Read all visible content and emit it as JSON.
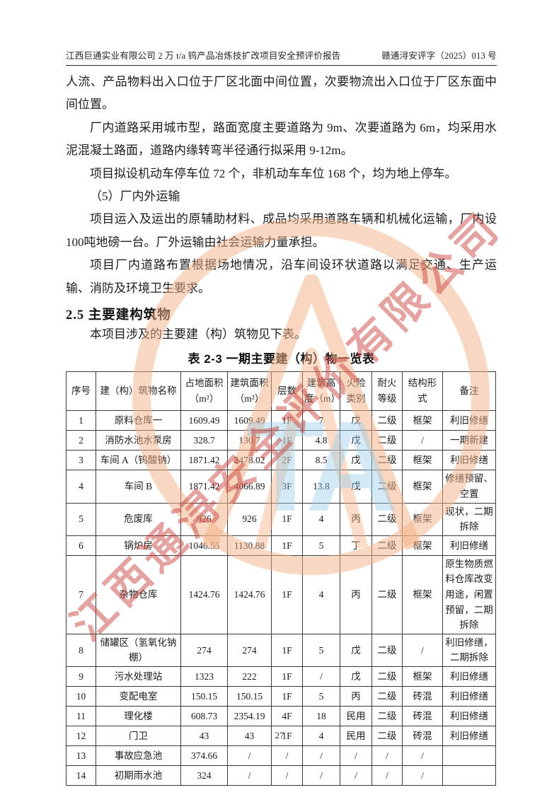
{
  "header": {
    "left": "江西巨通实业有限公司 2 万 t/a 钨产品冶炼技扩改项目安全预评价报告",
    "right": "赣通浔安评字（2025）013 号"
  },
  "paragraphs": [
    {
      "text": "人流、产品物料出入口位于厂区北面中间位置，次要物流出入口位于厂区东面中间位置。",
      "indent": false
    },
    {
      "text": "厂内道路采用城市型，路面宽度主要道路为 9m、次要道路为 6m，均采用水泥混凝土路面，道路内缘转弯半径通行拟采用 9-12m。",
      "indent": true
    },
    {
      "text": "项目拟设机动车停车位 72 个，非机动车车位 168 个，均为地上停车。",
      "indent": true
    },
    {
      "text": "（5）厂内外运输",
      "indent": true
    },
    {
      "text": "项目运入及运出的原辅助材料、成品均采用道路车辆和机械化运输，厂内设100吨地磅一台。厂外运输由社会运输力量承担。",
      "indent": true
    },
    {
      "text": "项目厂内道路布置根据场地情况，沿车间设环状道路以满足交通、生产运输、消防及环境卫生要求。",
      "indent": true
    }
  ],
  "section": {
    "heading": "2.5 主要建构筑物",
    "intro": "本项目涉及的主要建（构）筑物见下表。"
  },
  "table": {
    "caption": "表 2-3 一期主要建（构）物一览表",
    "headers": [
      "序号",
      "建（构）筑物名称",
      "占地面积（m²）",
      "建筑面积（m²）",
      "层数",
      "建筑高度（m）",
      "火险类别",
      "耐火等级",
      "结构形式",
      "备注"
    ],
    "rows": [
      [
        "1",
        "原料仓库一",
        "1609.49",
        "1609.49",
        "1F",
        "7",
        "戊",
        "二级",
        "框架",
        "利旧修缮"
      ],
      [
        "2",
        "消防水池水泵房",
        "328.7",
        "130.7",
        "1F",
        "4.8",
        "戊",
        "二级",
        "/",
        "一期新建"
      ],
      [
        "3",
        "车间 A（钨酸钠）",
        "1871.42",
        "2478.02",
        "2F",
        "8.5",
        "戊",
        "二级",
        "框架",
        "利旧修缮"
      ],
      [
        "4",
        "车间 B",
        "1871.42",
        "4066.89",
        "3F",
        "13.8",
        "戊",
        "二级",
        "框架",
        "修缮预留、空置"
      ],
      [
        "5",
        "危废库",
        "926",
        "926",
        "1F",
        "4",
        "丙",
        "二级",
        "框架",
        "现状，二期拆除"
      ],
      [
        "6",
        "锅炉房",
        "1046.55",
        "1130.88",
        "1F",
        "5",
        "丁",
        "二级",
        "框架",
        "利旧修缮"
      ],
      [
        "7",
        "杂物仓库",
        "1424.76",
        "1424.76",
        "1F",
        "4",
        "丙",
        "二级",
        "框架",
        "原生物质燃料仓库改变用途，闲置预留，二期拆除"
      ],
      [
        "8",
        "储罐区（氢氧化钠棚）",
        "274",
        "274",
        "1F",
        "5",
        "戊",
        "二级",
        "/",
        "利旧修缮，二期拆除"
      ],
      [
        "9",
        "污水处理站",
        "1323",
        "222",
        "1F",
        "/",
        "戊",
        "二级",
        "框架",
        "利旧修缮"
      ],
      [
        "10",
        "变配电室",
        "150.15",
        "150.15",
        "1F",
        "5",
        "丙",
        "二级",
        "砖混",
        "利旧修缮"
      ],
      [
        "11",
        "理化楼",
        "608.73",
        "2354.19",
        "4F",
        "18",
        "民用",
        "二级",
        "砖混",
        "利旧修缮"
      ],
      [
        "12",
        "门卫",
        "43",
        "43",
        "1F",
        "4",
        "民用",
        "二级",
        "砖混",
        "利旧修缮"
      ],
      [
        "13",
        "事故应急池",
        "374.66",
        "/",
        "/",
        "/",
        "/",
        "/",
        "/",
        ""
      ],
      [
        "14",
        "初期雨水池",
        "324",
        "/",
        "/",
        "/",
        "/",
        "/",
        "/",
        ""
      ]
    ]
  },
  "footer": {
    "page_number": "27"
  },
  "watermark": {
    "text": "江西通浔安全评价有限公司",
    "logo_letters": "TA",
    "ring_color": "#f3b187",
    "text_color": "#c73e38",
    "letters_color": "#97cde9"
  }
}
